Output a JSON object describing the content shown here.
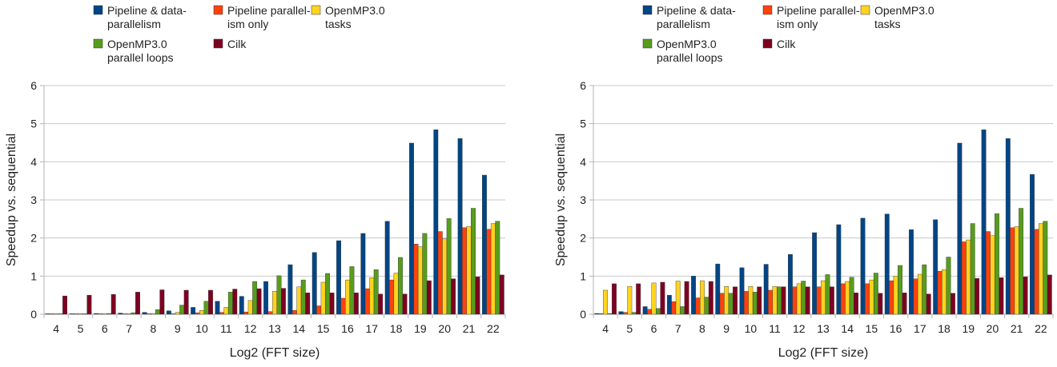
{
  "chart_data": [
    {
      "type": "bar",
      "title": "",
      "xlabel": "Log2 (FFT size)",
      "ylabel": "Speedup vs. sequential",
      "ylim": [
        0,
        6
      ],
      "yticks": [
        "0",
        "1",
        "2",
        "3",
        "4",
        "5",
        "6"
      ],
      "grid": true,
      "legend_position": "top",
      "categories": [
        "4",
        "5",
        "6",
        "7",
        "8",
        "9",
        "10",
        "11",
        "12",
        "13",
        "14",
        "15",
        "16",
        "17",
        "18",
        "19",
        "20",
        "21",
        "22"
      ],
      "series": [
        {
          "name": "Pipeline & data-parallelism",
          "legend_lines": [
            "Pipeline & data-",
            "parallelism"
          ],
          "color": "#004586",
          "values": [
            0.01,
            0.01,
            0.02,
            0.03,
            0.05,
            0.09,
            0.18,
            0.34,
            0.47,
            0.86,
            1.3,
            1.62,
            1.93,
            2.12,
            2.44,
            4.49,
            4.84,
            4.61,
            3.65
          ]
        },
        {
          "name": "Pipeline parallelism only",
          "legend_lines": [
            "Pipeline parallel-",
            "ism only"
          ],
          "color": "#ff420e",
          "values": [
            0.0,
            0.0,
            0.0,
            0.0,
            0.0,
            0.0,
            0.04,
            0.05,
            0.06,
            0.07,
            0.1,
            0.22,
            0.42,
            0.67,
            0.9,
            1.84,
            2.17,
            2.27,
            2.23
          ]
        },
        {
          "name": "OpenMP3.0 tasks",
          "legend_lines": [
            "OpenMP3.0",
            "tasks"
          ],
          "color": "#ffd320",
          "values": [
            0.0,
            0.0,
            0.0,
            0.01,
            0.02,
            0.05,
            0.1,
            0.18,
            0.36,
            0.6,
            0.72,
            0.84,
            0.9,
            0.96,
            1.08,
            1.77,
            1.98,
            2.3,
            2.38
          ]
        },
        {
          "name": "OpenMP3.0 parallel loops",
          "legend_lines": [
            "OpenMP3.0",
            "parallel loops"
          ],
          "color": "#579d1c",
          "values": [
            0.0,
            0.0,
            0.02,
            0.04,
            0.12,
            0.24,
            0.34,
            0.58,
            0.86,
            1.01,
            0.9,
            1.07,
            1.25,
            1.17,
            1.49,
            2.12,
            2.51,
            2.78,
            2.44
          ]
        },
        {
          "name": "Cilk",
          "legend_lines": [
            "Cilk"
          ],
          "color": "#7e0021",
          "values": [
            0.48,
            0.5,
            0.52,
            0.58,
            0.64,
            0.63,
            0.63,
            0.66,
            0.67,
            0.68,
            0.56,
            0.56,
            0.56,
            0.53,
            0.53,
            0.88,
            0.93,
            0.98,
            1.03
          ]
        }
      ]
    },
    {
      "type": "bar",
      "title": "",
      "xlabel": "Log2 (FFT size)",
      "ylabel": "Speedup vs. sequential",
      "ylim": [
        0,
        6
      ],
      "yticks": [
        "0",
        "1",
        "2",
        "3",
        "4",
        "5",
        "6"
      ],
      "grid": true,
      "legend_position": "top",
      "categories": [
        "4",
        "5",
        "6",
        "7",
        "8",
        "9",
        "10",
        "11",
        "12",
        "13",
        "14",
        "15",
        "16",
        "17",
        "18",
        "19",
        "20",
        "21",
        "22"
      ],
      "series": [
        {
          "name": "Pipeline & data-parallelism",
          "legend_lines": [
            "Pipeline & data-",
            "parallelism"
          ],
          "color": "#004586",
          "values": [
            0.02,
            0.07,
            0.2,
            0.5,
            1.0,
            1.32,
            1.22,
            1.31,
            1.57,
            2.14,
            2.35,
            2.52,
            2.63,
            2.22,
            2.48,
            4.49,
            4.84,
            4.61,
            3.67
          ]
        },
        {
          "name": "Pipeline parallelism only",
          "legend_lines": [
            "Pipeline parallel-",
            "ism only"
          ],
          "color": "#ff420e",
          "values": [
            0.02,
            0.05,
            0.13,
            0.33,
            0.43,
            0.55,
            0.6,
            0.63,
            0.72,
            0.72,
            0.8,
            0.8,
            0.88,
            0.93,
            1.13,
            1.9,
            2.17,
            2.27,
            2.23
          ]
        },
        {
          "name": "OpenMP3.0 tasks",
          "legend_lines": [
            "OpenMP3.0",
            "tasks"
          ],
          "color": "#ffd320",
          "values": [
            0.63,
            0.73,
            0.82,
            0.87,
            0.88,
            0.73,
            0.73,
            0.73,
            0.8,
            0.88,
            0.86,
            0.9,
            1.0,
            1.05,
            1.17,
            1.95,
            2.06,
            2.3,
            2.38
          ]
        },
        {
          "name": "OpenMP3.0 parallel loops",
          "legend_lines": [
            "OpenMP3.0",
            "parallel loops"
          ],
          "color": "#579d1c",
          "values": [
            0.02,
            0.05,
            0.15,
            0.2,
            0.45,
            0.55,
            0.58,
            0.72,
            0.87,
            1.04,
            0.97,
            1.08,
            1.28,
            1.3,
            1.5,
            2.38,
            2.64,
            2.78,
            2.44
          ]
        },
        {
          "name": "Cilk",
          "legend_lines": [
            "Cilk"
          ],
          "color": "#7e0021",
          "values": [
            0.8,
            0.8,
            0.84,
            0.86,
            0.86,
            0.72,
            0.72,
            0.72,
            0.72,
            0.72,
            0.56,
            0.55,
            0.56,
            0.53,
            0.55,
            0.94,
            0.96,
            0.98,
            1.03
          ]
        }
      ]
    }
  ]
}
